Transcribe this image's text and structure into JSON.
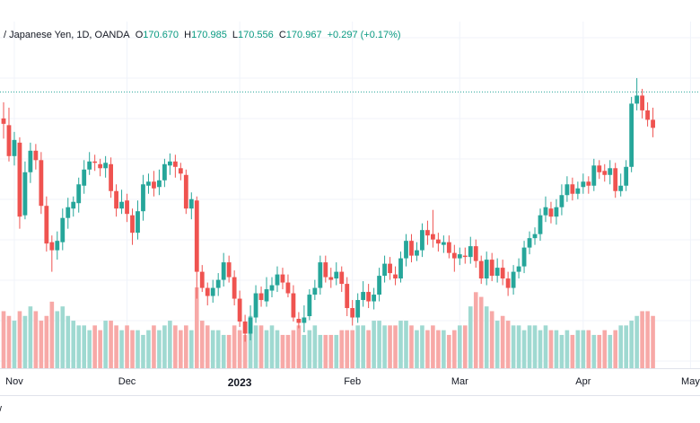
{
  "legend": {
    "symbol": "/ Japanese Yen, 1D, OANDA",
    "open_label": "O",
    "open": "170.670",
    "high_label": "H",
    "high": "170.985",
    "low_label": "L",
    "low": "170.556",
    "close_label": "C",
    "close": "170.967",
    "change": "+0.297 (+0.17%)"
  },
  "footer": {
    "brand": "w"
  },
  "colors": {
    "up": "#26a69a",
    "down": "#ef5350",
    "up_volume": "#9fd9d1",
    "down_volume": "#f7a9a7",
    "price_line": "#26a69a"
  },
  "chart_data": {
    "type": "candlestick",
    "x_labels": [
      {
        "label": "Nov",
        "index": 2
      },
      {
        "label": "Dec",
        "index": 23
      },
      {
        "label": "2023",
        "index": 44,
        "major": true
      },
      {
        "label": "Feb",
        "index": 65
      },
      {
        "label": "Mar",
        "index": 85
      },
      {
        "label": "Apr",
        "index": 108
      },
      {
        "label": "May",
        "index": 128
      }
    ],
    "current_price": 170.967,
    "y_range": [
      153.5,
      174.2
    ],
    "candles": [
      [
        169.0,
        168.6,
        170.2,
        167.5,
        12
      ],
      [
        168.5,
        166.2,
        169.8,
        165.8,
        11
      ],
      [
        166.2,
        167.4,
        168.0,
        165.5,
        10
      ],
      [
        167.2,
        161.7,
        167.6,
        160.8,
        12
      ],
      [
        161.8,
        165.0,
        165.8,
        161.5,
        11
      ],
      [
        165.0,
        166.6,
        167.2,
        164.2,
        13
      ],
      [
        166.6,
        165.9,
        167.1,
        165.2,
        12
      ],
      [
        165.9,
        162.5,
        166.5,
        161.9,
        10
      ],
      [
        162.5,
        159.7,
        163.2,
        159.1,
        11
      ],
      [
        159.8,
        159.2,
        160.3,
        157.6,
        14
      ],
      [
        159.2,
        159.9,
        160.6,
        158.5,
        12
      ],
      [
        159.8,
        161.6,
        162.3,
        159.2,
        13
      ],
      [
        161.6,
        162.4,
        163.1,
        160.8,
        11
      ],
      [
        162.3,
        162.8,
        163.2,
        161.7,
        10
      ],
      [
        162.7,
        164.1,
        164.6,
        162.0,
        9
      ],
      [
        164.0,
        165.2,
        165.9,
        163.4,
        9
      ],
      [
        165.2,
        165.8,
        166.5,
        164.8,
        8
      ],
      [
        165.8,
        165.7,
        166.3,
        165.1,
        9
      ],
      [
        165.6,
        165.3,
        166.0,
        164.7,
        8
      ],
      [
        165.3,
        165.7,
        166.2,
        164.6,
        10
      ],
      [
        165.6,
        163.6,
        166.1,
        163.1,
        10
      ],
      [
        163.6,
        162.3,
        164.1,
        161.7,
        9
      ],
      [
        162.3,
        162.8,
        163.7,
        161.9,
        8
      ],
      [
        162.9,
        161.9,
        163.4,
        161.3,
        9
      ],
      [
        161.8,
        160.5,
        162.3,
        159.6,
        8
      ],
      [
        160.5,
        162.1,
        162.9,
        160.0,
        8
      ],
      [
        162.1,
        164.1,
        164.8,
        161.4,
        7
      ],
      [
        164.0,
        164.3,
        164.9,
        163.4,
        8
      ],
      [
        164.3,
        163.8,
        165.1,
        163.2,
        9
      ],
      [
        163.9,
        164.4,
        165.2,
        163.3,
        8
      ],
      [
        164.4,
        165.6,
        166.0,
        163.9,
        9
      ],
      [
        165.5,
        165.8,
        166.4,
        164.8,
        10
      ],
      [
        165.8,
        165.4,
        166.3,
        164.6,
        9
      ],
      [
        165.3,
        164.9,
        165.7,
        164.4,
        8
      ],
      [
        164.8,
        162.3,
        165.2,
        161.9,
        9
      ],
      [
        162.3,
        163.0,
        163.5,
        161.5,
        8
      ],
      [
        162.9,
        157.6,
        163.2,
        155.6,
        17
      ],
      [
        157.6,
        156.4,
        158.1,
        156.1,
        10
      ],
      [
        156.4,
        155.8,
        156.8,
        155.1,
        9
      ],
      [
        155.8,
        156.4,
        157.0,
        155.3,
        8
      ],
      [
        156.4,
        157.0,
        157.5,
        155.8,
        8
      ],
      [
        157.0,
        158.3,
        159.0,
        156.5,
        7
      ],
      [
        158.3,
        157.2,
        158.8,
        156.8,
        7
      ],
      [
        157.2,
        155.6,
        157.7,
        155.1,
        9
      ],
      [
        155.6,
        153.9,
        156.2,
        153.5,
        8
      ],
      [
        153.9,
        153.0,
        154.4,
        152.4,
        7
      ],
      [
        153.0,
        154.2,
        155.1,
        152.5,
        11
      ],
      [
        154.2,
        156.0,
        156.6,
        153.8,
        9
      ],
      [
        156.0,
        155.5,
        156.5,
        155.0,
        9
      ],
      [
        155.4,
        156.3,
        157.2,
        155.0,
        8
      ],
      [
        156.2,
        156.6,
        157.2,
        155.7,
        9
      ],
      [
        156.6,
        157.4,
        158.0,
        156.1,
        8
      ],
      [
        157.4,
        156.8,
        157.9,
        156.3,
        7
      ],
      [
        156.8,
        156.0,
        157.4,
        155.7,
        7
      ],
      [
        156.0,
        154.2,
        156.6,
        153.9,
        8
      ],
      [
        154.1,
        153.8,
        154.6,
        153.4,
        9
      ],
      [
        153.8,
        154.2,
        155.1,
        153.1,
        7
      ],
      [
        154.3,
        155.9,
        156.3,
        154.0,
        8
      ],
      [
        155.9,
        156.4,
        157.0,
        155.5,
        9
      ],
      [
        156.4,
        158.3,
        158.8,
        155.9,
        7
      ],
      [
        158.3,
        157.2,
        158.8,
        156.8,
        7
      ],
      [
        157.2,
        157.0,
        157.9,
        156.4,
        7
      ],
      [
        157.1,
        157.6,
        158.3,
        156.6,
        7
      ],
      [
        157.6,
        156.7,
        158.0,
        156.1,
        8
      ],
      [
        156.7,
        154.9,
        157.2,
        154.3,
        8
      ],
      [
        154.9,
        154.2,
        155.5,
        153.6,
        8
      ],
      [
        154.2,
        155.5,
        156.0,
        153.8,
        9
      ],
      [
        155.5,
        156.1,
        156.9,
        155.0,
        9
      ],
      [
        156.1,
        155.4,
        156.7,
        154.9,
        8
      ],
      [
        155.4,
        155.9,
        156.4,
        154.8,
        10
      ],
      [
        155.9,
        157.3,
        157.9,
        155.4,
        10
      ],
      [
        157.3,
        158.2,
        158.8,
        156.8,
        9
      ],
      [
        158.2,
        157.5,
        158.7,
        157.0,
        9
      ],
      [
        157.4,
        157.1,
        158.0,
        156.6,
        9
      ],
      [
        157.1,
        158.6,
        159.1,
        156.8,
        10
      ],
      [
        158.6,
        159.9,
        160.4,
        158.0,
        10
      ],
      [
        159.9,
        158.8,
        160.4,
        158.3,
        9
      ],
      [
        158.8,
        159.2,
        159.8,
        158.4,
        8
      ],
      [
        159.2,
        160.7,
        161.2,
        158.7,
        9
      ],
      [
        160.7,
        160.3,
        161.4,
        159.6,
        8
      ],
      [
        160.4,
        160.0,
        162.2,
        159.4,
        9
      ],
      [
        160.0,
        159.7,
        160.5,
        159.1,
        8
      ],
      [
        159.6,
        159.8,
        160.3,
        159.0,
        8
      ],
      [
        159.8,
        159.0,
        160.3,
        158.6,
        7
      ],
      [
        159.0,
        158.6,
        159.6,
        157.6,
        8
      ],
      [
        158.6,
        158.9,
        159.4,
        158.1,
        9
      ],
      [
        158.8,
        158.7,
        159.4,
        158.2,
        9
      ],
      [
        158.7,
        159.5,
        160.2,
        158.2,
        13
      ],
      [
        159.5,
        158.4,
        160.0,
        157.9,
        16
      ],
      [
        158.4,
        157.1,
        158.8,
        156.7,
        15
      ],
      [
        157.1,
        158.5,
        159.1,
        156.6,
        13
      ],
      [
        158.5,
        157.3,
        159.0,
        156.9,
        12
      ],
      [
        157.3,
        157.9,
        158.6,
        156.8,
        10
      ],
      [
        157.9,
        157.1,
        158.5,
        156.6,
        11
      ],
      [
        157.1,
        156.4,
        157.6,
        155.8,
        10
      ],
      [
        156.4,
        157.6,
        158.1,
        155.9,
        9
      ],
      [
        157.6,
        158.0,
        158.6,
        157.1,
        9
      ],
      [
        158.0,
        159.4,
        159.9,
        157.5,
        8
      ],
      [
        159.4,
        160.1,
        160.6,
        158.9,
        9
      ],
      [
        160.1,
        160.4,
        160.9,
        159.6,
        9
      ],
      [
        160.4,
        161.8,
        162.3,
        159.9,
        8
      ],
      [
        161.8,
        162.4,
        163.2,
        161.3,
        9
      ],
      [
        162.3,
        161.7,
        162.8,
        161.2,
        8
      ],
      [
        161.7,
        162.4,
        163.0,
        161.1,
        8
      ],
      [
        162.4,
        163.3,
        164.1,
        161.8,
        7
      ],
      [
        163.3,
        164.1,
        164.7,
        162.8,
        8
      ],
      [
        164.1,
        163.4,
        164.6,
        162.9,
        7
      ],
      [
        163.4,
        163.8,
        164.3,
        163.0,
        8
      ],
      [
        163.9,
        164.3,
        164.9,
        163.4,
        8
      ],
      [
        164.3,
        164.0,
        164.7,
        163.4,
        8
      ],
      [
        164.0,
        165.5,
        166.0,
        163.6,
        7
      ],
      [
        165.5,
        165.0,
        165.9,
        164.5,
        7
      ],
      [
        165.1,
        164.8,
        165.6,
        164.3,
        8
      ],
      [
        164.8,
        165.3,
        165.9,
        164.1,
        7
      ],
      [
        165.3,
        163.6,
        165.7,
        163.1,
        8
      ],
      [
        163.6,
        164.0,
        164.9,
        163.2,
        9
      ],
      [
        164.0,
        165.4,
        165.9,
        163.6,
        9
      ],
      [
        165.4,
        170.1,
        170.6,
        165.0,
        10
      ],
      [
        170.1,
        170.7,
        172.0,
        169.6,
        11
      ],
      [
        170.7,
        169.6,
        171.2,
        169.0,
        12
      ],
      [
        169.6,
        168.9,
        170.2,
        168.4,
        12
      ],
      [
        168.9,
        168.3,
        169.8,
        167.6,
        11
      ]
    ]
  }
}
